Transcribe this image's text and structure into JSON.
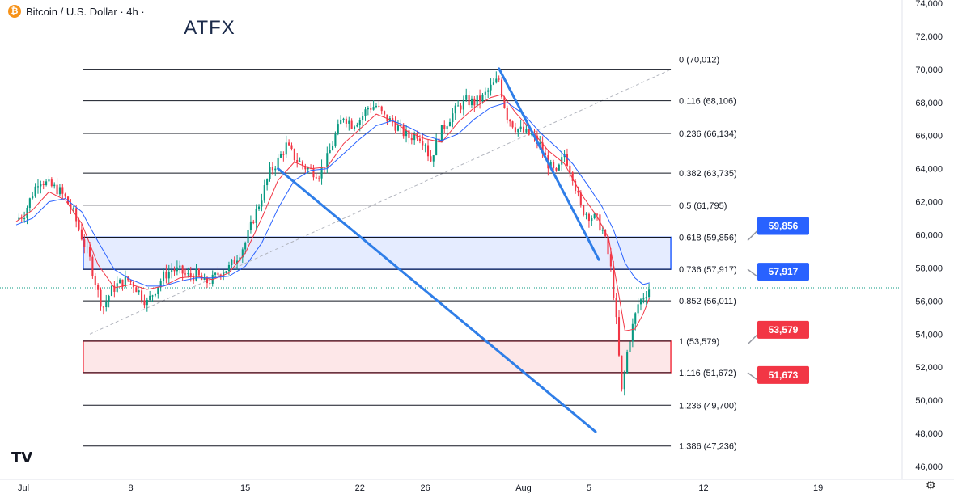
{
  "header": {
    "title": "Bitcoin / U.S. Dollar · 4h ·",
    "icon": "bitcoin-icon",
    "icon_glyph": "₿"
  },
  "brand": {
    "text": "ATFX"
  },
  "tv_logo": {
    "text": "TV"
  },
  "settings": {
    "icon": "gear-icon",
    "glyph": "⚙"
  },
  "colors": {
    "blue_zone": "#2962ff",
    "red_zone": "#f23645",
    "up": "#089981",
    "down": "#f23645",
    "ma_fast": "#f23645",
    "ma_slow": "#2962ff",
    "trend": "#2f7ee8"
  },
  "chart_data": {
    "type": "candlestick",
    "title": "Bitcoin / U.S. Dollar · 4h ·",
    "ylim": [
      45500,
      74500
    ],
    "y_ticks": [
      46000,
      48000,
      50000,
      52000,
      54000,
      56000,
      58000,
      60000,
      62000,
      64000,
      66000,
      68000,
      70000,
      72000,
      74000
    ],
    "y_tick_labels": [
      "46,000",
      "48,000",
      "50,000",
      "52,000",
      "54,000",
      "56,000",
      "58,000",
      "60,000",
      "62,000",
      "64,000",
      "66,000",
      "68,000",
      "70,000",
      "72,000",
      "74,000"
    ],
    "x_range_days": [
      0,
      19.7
    ],
    "x_ticks": [
      {
        "label": "Jul",
        "day": 0
      },
      {
        "label": "8",
        "day": 7
      },
      {
        "label": "15",
        "day": 14
      },
      {
        "label": "22",
        "day": 21
      },
      {
        "label": "26",
        "day": 25
      },
      {
        "label": "Aug",
        "day": 31
      },
      {
        "label": "5",
        "day": 35
      },
      {
        "label": "12",
        "day": 42
      },
      {
        "label": "19",
        "day": 49
      }
    ],
    "x_domain_days": [
      0,
      53
    ],
    "current_price": 56800,
    "fib_levels": [
      {
        "ratio": "0",
        "value": 70012,
        "label": "0 (70,012)"
      },
      {
        "ratio": "0.116",
        "value": 68106,
        "label": "0.116 (68,106)"
      },
      {
        "ratio": "0.236",
        "value": 66134,
        "label": "0.236 (66,134)"
      },
      {
        "ratio": "0.382",
        "value": 63735,
        "label": "0.382 (63,735)"
      },
      {
        "ratio": "0.5",
        "value": 61795,
        "label": "0.5 (61,795)"
      },
      {
        "ratio": "0.618",
        "value": 59856,
        "label": "0.618 (59,856)"
      },
      {
        "ratio": "0.736",
        "value": 57917,
        "label": "0.736 (57,917)"
      },
      {
        "ratio": "0.852",
        "value": 56011,
        "label": "0.852 (56,011)"
      },
      {
        "ratio": "1",
        "value": 53579,
        "label": "1 (53,579)"
      },
      {
        "ratio": "1.116",
        "value": 51672,
        "label": "1.116 (51,672)"
      },
      {
        "ratio": "1.236",
        "value": 49700,
        "label": "1.236 (49,700)"
      },
      {
        "ratio": "1.386",
        "value": 47236,
        "label": "1.386 (47,236)"
      }
    ],
    "zones": [
      {
        "name": "resistance",
        "top": 59856,
        "bottom": 57917,
        "color": "#2962ff"
      },
      {
        "name": "support",
        "top": 53579,
        "bottom": 51673,
        "color": "#f23645"
      }
    ],
    "badges": [
      {
        "text": "59,856",
        "value": 59856,
        "color": "#2962ff"
      },
      {
        "text": "57,917",
        "value": 57917,
        "color": "#2962ff"
      },
      {
        "text": "53,579",
        "value": 53579,
        "color": "#f23645"
      },
      {
        "text": "51,673",
        "value": 51673,
        "color": "#f23645"
      }
    ],
    "trendlines": [
      {
        "name": "upper-trendline",
        "from": {
          "day": 29.5,
          "value": 70050
        },
        "to": {
          "day": 35.6,
          "value": 58500
        }
      },
      {
        "name": "lower-trendline",
        "from": {
          "day": 16.0,
          "value": 64000
        },
        "to": {
          "day": 35.4,
          "value": 48100
        }
      }
    ],
    "fib_anchor_line": {
      "from": {
        "day": 4.5,
        "value": 54000
      },
      "to": {
        "day": 40.0,
        "value": 70000
      }
    },
    "fib_line_day_range": [
      4.1,
      40.0
    ],
    "close_path": [
      [
        0.0,
        60900
      ],
      [
        0.5,
        61300
      ],
      [
        1.0,
        62500
      ],
      [
        1.4,
        63400
      ],
      [
        2.0,
        63000
      ],
      [
        2.6,
        62700
      ],
      [
        3.0,
        62200
      ],
      [
        3.5,
        61300
      ],
      [
        4.0,
        59900
      ],
      [
        4.5,
        58500
      ],
      [
        5.0,
        56500
      ],
      [
        5.3,
        55600
      ],
      [
        5.8,
        56600
      ],
      [
        6.2,
        57000
      ],
      [
        6.8,
        57300
      ],
      [
        7.2,
        57000
      ],
      [
        7.6,
        56400
      ],
      [
        8.0,
        55900
      ],
      [
        8.5,
        56700
      ],
      [
        9.0,
        57500
      ],
      [
        9.5,
        57900
      ],
      [
        10.0,
        57800
      ],
      [
        10.5,
        57500
      ],
      [
        11.0,
        57600
      ],
      [
        11.5,
        57100
      ],
      [
        12.0,
        57300
      ],
      [
        12.5,
        57800
      ],
      [
        13.0,
        58000
      ],
      [
        13.5,
        58700
      ],
      [
        14.0,
        59500
      ],
      [
        14.5,
        61000
      ],
      [
        15.0,
        62300
      ],
      [
        15.5,
        63800
      ],
      [
        16.0,
        64500
      ],
      [
        16.5,
        65400
      ],
      [
        17.0,
        64700
      ],
      [
        17.5,
        64200
      ],
      [
        18.0,
        63900
      ],
      [
        18.5,
        63700
      ],
      [
        19.0,
        64600
      ],
      [
        19.5,
        66000
      ],
      [
        20.0,
        67200
      ],
      [
        20.5,
        66700
      ],
      [
        21.0,
        67000
      ],
      [
        21.5,
        67700
      ],
      [
        22.0,
        67800
      ],
      [
        22.5,
        67100
      ],
      [
        23.0,
        66800
      ],
      [
        23.5,
        66300
      ],
      [
        24.0,
        65900
      ],
      [
        24.5,
        66100
      ],
      [
        25.0,
        65600
      ],
      [
        25.3,
        64400
      ],
      [
        25.6,
        65400
      ],
      [
        26.0,
        66300
      ],
      [
        26.5,
        67100
      ],
      [
        27.0,
        67700
      ],
      [
        27.5,
        68100
      ],
      [
        28.0,
        68000
      ],
      [
        28.5,
        68300
      ],
      [
        29.0,
        68900
      ],
      [
        29.5,
        69400
      ],
      [
        29.7,
        68400
      ],
      [
        30.0,
        67200
      ],
      [
        30.5,
        66500
      ],
      [
        31.0,
        66200
      ],
      [
        31.5,
        66000
      ],
      [
        32.0,
        65400
      ],
      [
        32.5,
        64300
      ],
      [
        33.0,
        63600
      ],
      [
        33.5,
        64900
      ],
      [
        34.0,
        63600
      ],
      [
        34.5,
        61600
      ],
      [
        35.0,
        61200
      ],
      [
        35.5,
        60900
      ],
      [
        35.9,
        60100
      ],
      [
        36.3,
        58200
      ],
      [
        36.6,
        55600
      ],
      [
        36.8,
        53000
      ],
      [
        37.0,
        50500
      ],
      [
        37.2,
        51800
      ],
      [
        37.4,
        53400
      ],
      [
        37.6,
        54200
      ],
      [
        38.0,
        55800
      ],
      [
        38.4,
        56400
      ],
      [
        38.7,
        56800
      ]
    ],
    "ma_fast_path": [
      [
        0.0,
        60800
      ],
      [
        1.0,
        61500
      ],
      [
        2.0,
        62600
      ],
      [
        3.0,
        62100
      ],
      [
        4.0,
        60700
      ],
      [
        5.0,
        58200
      ],
      [
        6.0,
        56800
      ],
      [
        7.0,
        57000
      ],
      [
        8.0,
        56700
      ],
      [
        9.0,
        56900
      ],
      [
        10.0,
        57400
      ],
      [
        11.0,
        57500
      ],
      [
        12.0,
        57300
      ],
      [
        13.0,
        57700
      ],
      [
        14.0,
        58900
      ],
      [
        15.0,
        61000
      ],
      [
        16.0,
        63300
      ],
      [
        17.0,
        64400
      ],
      [
        18.0,
        64000
      ],
      [
        19.0,
        64100
      ],
      [
        20.0,
        65500
      ],
      [
        21.0,
        66400
      ],
      [
        22.0,
        67300
      ],
      [
        23.0,
        66900
      ],
      [
        24.0,
        66200
      ],
      [
        25.0,
        65800
      ],
      [
        26.0,
        65600
      ],
      [
        27.0,
        66800
      ],
      [
        28.0,
        67700
      ],
      [
        29.0,
        68300
      ],
      [
        29.7,
        68500
      ],
      [
        30.5,
        67400
      ],
      [
        31.5,
        66300
      ],
      [
        32.5,
        65100
      ],
      [
        33.5,
        64300
      ],
      [
        34.5,
        62500
      ],
      [
        35.5,
        61100
      ],
      [
        36.2,
        59800
      ],
      [
        36.8,
        56500
      ],
      [
        37.2,
        54200
      ],
      [
        37.8,
        54300
      ],
      [
        38.3,
        55200
      ],
      [
        38.7,
        56200
      ]
    ],
    "ma_slow_path": [
      [
        0.0,
        60600
      ],
      [
        1.0,
        61000
      ],
      [
        2.0,
        62000
      ],
      [
        3.0,
        62200
      ],
      [
        4.0,
        61400
      ],
      [
        5.0,
        59600
      ],
      [
        6.0,
        57900
      ],
      [
        7.0,
        57300
      ],
      [
        8.0,
        56900
      ],
      [
        9.0,
        56900
      ],
      [
        10.0,
        57200
      ],
      [
        11.0,
        57400
      ],
      [
        12.0,
        57400
      ],
      [
        13.0,
        57500
      ],
      [
        14.0,
        58100
      ],
      [
        15.0,
        59500
      ],
      [
        16.0,
        61600
      ],
      [
        17.0,
        63300
      ],
      [
        18.0,
        63900
      ],
      [
        19.0,
        64000
      ],
      [
        20.0,
        64900
      ],
      [
        21.0,
        65800
      ],
      [
        22.0,
        66600
      ],
      [
        23.0,
        66900
      ],
      [
        24.0,
        66500
      ],
      [
        25.0,
        66000
      ],
      [
        26.0,
        65700
      ],
      [
        27.0,
        66100
      ],
      [
        28.0,
        67000
      ],
      [
        29.0,
        67700
      ],
      [
        30.0,
        68000
      ],
      [
        31.0,
        67300
      ],
      [
        32.0,
        66200
      ],
      [
        33.0,
        65300
      ],
      [
        34.0,
        64300
      ],
      [
        35.0,
        62900
      ],
      [
        35.8,
        61700
      ],
      [
        36.5,
        60300
      ],
      [
        37.2,
        58300
      ],
      [
        37.8,
        57400
      ],
      [
        38.3,
        57000
      ],
      [
        38.7,
        57100
      ]
    ]
  }
}
